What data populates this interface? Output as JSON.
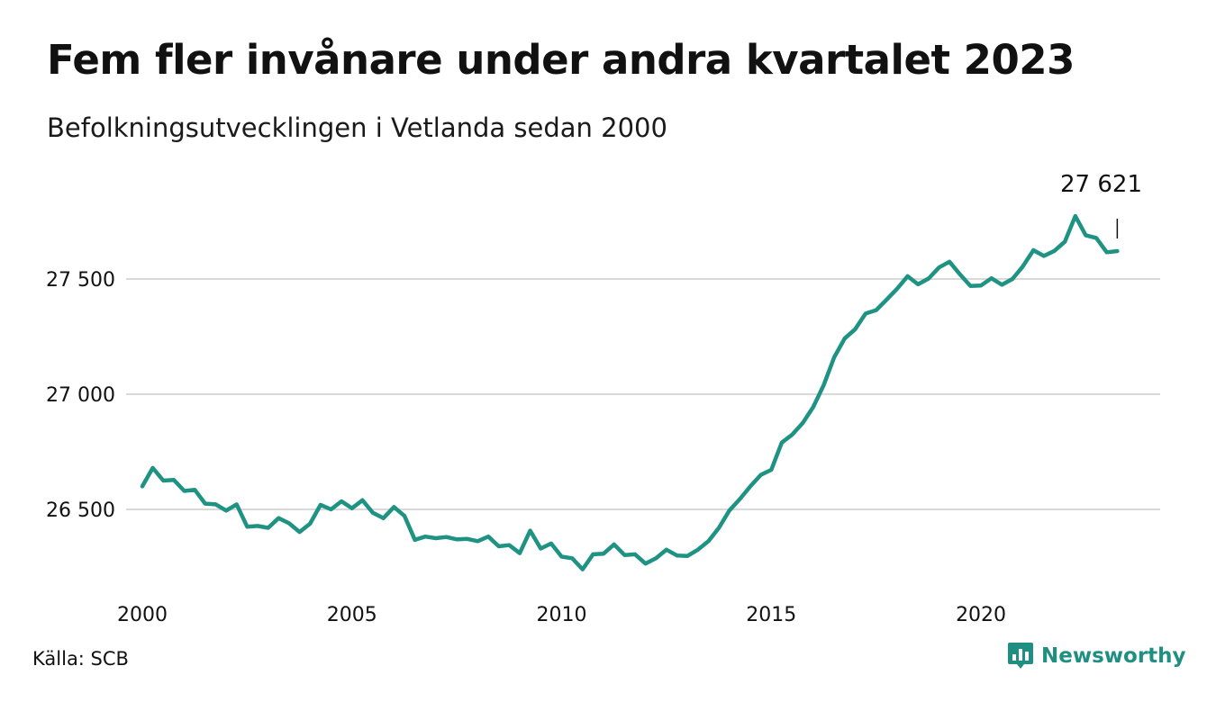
{
  "title": "Fem fler invånare under andra kvartalet 2023",
  "subtitle": "Befolkningsutvecklingen i Vetlanda sedan 2000",
  "source": "Källa: SCB",
  "brand": {
    "name": "Newsworthy",
    "icon": "bar-chart-speech-icon",
    "color": "#1f8f82"
  },
  "colors": {
    "line": "#1f9383",
    "grid": "#d9d9d9",
    "text": "#111111"
  },
  "chart_data": {
    "type": "line",
    "title": "Fem fler invånare under andra kvartalet 2023",
    "subtitle": "Befolkningsutvecklingen i Vetlanda sedan 2000",
    "xlabel": "",
    "ylabel": "",
    "xlim": [
      2000,
      2023.5
    ],
    "ylim": [
      26210,
      27800
    ],
    "x_ticks": [
      2000,
      2005,
      2010,
      2015,
      2020
    ],
    "x_tick_labels": [
      "2000",
      "2005",
      "2010",
      "2015",
      "2020"
    ],
    "y_ticks": [
      26500,
      27000,
      27500
    ],
    "y_tick_labels": [
      "26 500",
      "27 000",
      "27 500"
    ],
    "grid": true,
    "legend": "none",
    "annotation": {
      "x": 2023.25,
      "y": 27621,
      "label": "27 621"
    },
    "series": [
      {
        "name": "",
        "x": [
          2000.0,
          2000.25,
          2000.5,
          2000.75,
          2001.0,
          2001.25,
          2001.5,
          2001.75,
          2002.0,
          2002.25,
          2002.5,
          2002.75,
          2003.0,
          2003.25,
          2003.5,
          2003.75,
          2004.0,
          2004.25,
          2004.5,
          2004.75,
          2005.0,
          2005.25,
          2005.5,
          2005.75,
          2006.0,
          2006.25,
          2006.5,
          2006.75,
          2007.0,
          2007.25,
          2007.5,
          2007.75,
          2008.0,
          2008.25,
          2008.5,
          2008.75,
          2009.0,
          2009.25,
          2009.5,
          2009.75,
          2010.0,
          2010.25,
          2010.5,
          2010.75,
          2011.0,
          2011.25,
          2011.5,
          2011.75,
          2012.0,
          2012.25,
          2012.5,
          2012.75,
          2013.0,
          2013.25,
          2013.5,
          2013.75,
          2014.0,
          2014.25,
          2014.5,
          2014.75,
          2015.0,
          2015.25,
          2015.5,
          2015.75,
          2016.0,
          2016.25,
          2016.5,
          2016.75,
          2017.0,
          2017.25,
          2017.5,
          2017.75,
          2018.0,
          2018.25,
          2018.5,
          2018.75,
          2019.0,
          2019.25,
          2019.5,
          2019.75,
          2020.0,
          2020.25,
          2020.5,
          2020.75,
          2021.0,
          2021.25,
          2021.5,
          2021.75,
          2022.0,
          2022.25,
          2022.5,
          2022.75,
          2023.0,
          2023.25
        ],
        "values": [
          26600,
          26680,
          26625,
          26628,
          26580,
          26585,
          26525,
          26522,
          26495,
          26522,
          26425,
          26428,
          26420,
          26462,
          26440,
          26402,
          26438,
          26520,
          26500,
          26535,
          26505,
          26540,
          26485,
          26462,
          26510,
          26472,
          26368,
          26382,
          26375,
          26380,
          26370,
          26372,
          26362,
          26382,
          26340,
          26345,
          26310,
          26408,
          26330,
          26352,
          26295,
          26288,
          26240,
          26305,
          26308,
          26348,
          26302,
          26305,
          26265,
          26288,
          26325,
          26300,
          26298,
          26325,
          26362,
          26420,
          26495,
          26545,
          26600,
          26650,
          26672,
          26790,
          26825,
          26875,
          26945,
          27040,
          27160,
          27242,
          27282,
          27350,
          27365,
          27410,
          27458,
          27512,
          27477,
          27502,
          27550,
          27575,
          27520,
          27470,
          27472,
          27503,
          27475,
          27500,
          27555,
          27625,
          27600,
          27622,
          27662,
          27773,
          27690,
          27678,
          27616,
          27621
        ]
      }
    ]
  }
}
